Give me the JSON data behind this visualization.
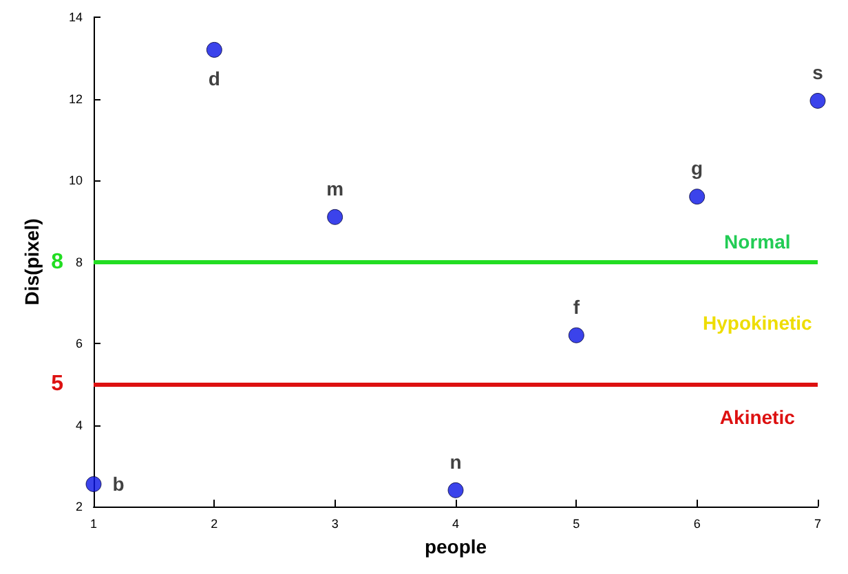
{
  "chart_data": {
    "type": "scatter",
    "xlabel": "people",
    "ylabel": "Dis(pixel)",
    "x": [
      1,
      2,
      3,
      4,
      5,
      6,
      7
    ],
    "values": [
      2.55,
      13.2,
      9.1,
      2.4,
      6.2,
      9.6,
      11.95
    ],
    "value_labels": [
      "b",
      "d",
      "m",
      "n",
      "f",
      "g",
      "s"
    ],
    "color": "#0a14e6",
    "marker": "circle",
    "grid": false,
    "xlim": [
      1,
      7
    ],
    "xticks": [
      1,
      2,
      3,
      4,
      5,
      6,
      7
    ],
    "ylim": [
      2,
      14
    ],
    "yticks": [
      2,
      4,
      6,
      8,
      10,
      12,
      14
    ],
    "ref_lines": [
      {
        "axis": "y",
        "value": 8,
        "label": "8",
        "color": "#22dd22"
      },
      {
        "axis": "y",
        "value": 5,
        "label": "5",
        "color": "#dd1111"
      }
    ],
    "annotations": [
      "Normal",
      "Hypokinetic",
      "Akinetic"
    ]
  }
}
